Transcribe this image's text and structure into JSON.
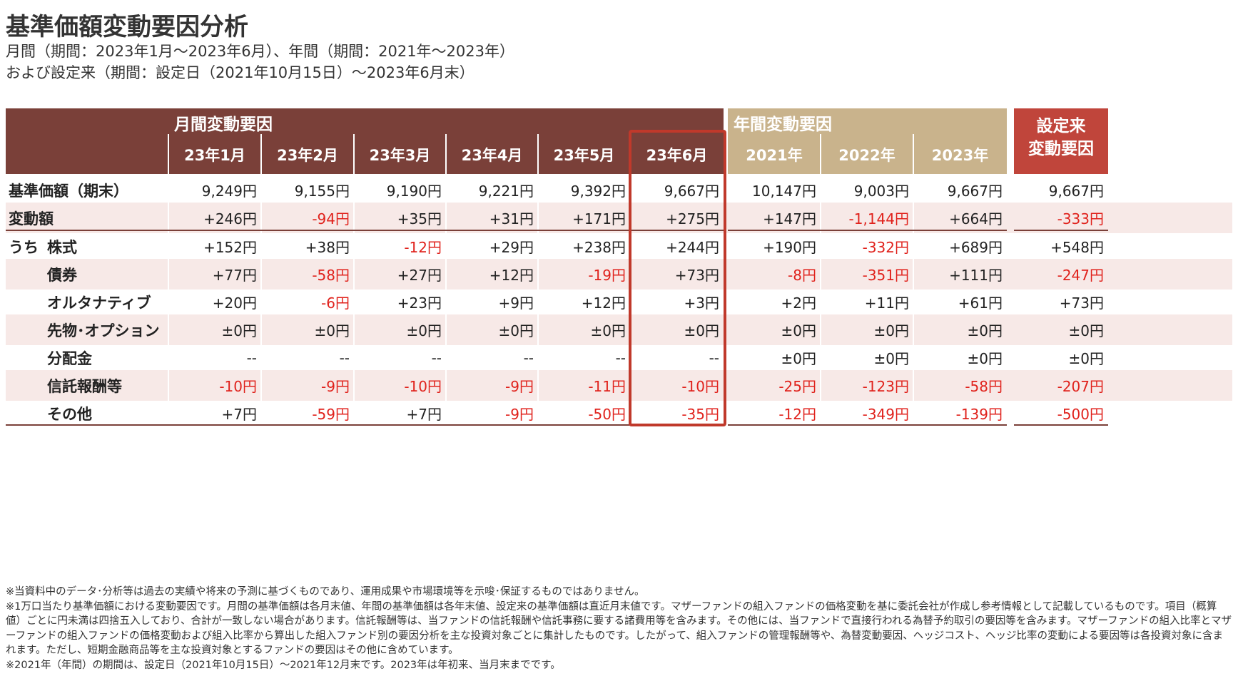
{
  "title": "基準価額変動要因分析",
  "subtitle_lines": [
    "月間（期間：2023年1月～2023年6月）、年間（期間：2021年～2023年）",
    "および設定来（期間：設定日（2021年10月15日）～2023年6月末）"
  ],
  "groups": {
    "monthly": "月間変動要因",
    "annual": "年間変動要因",
    "since_inception": [
      "設定来",
      "変動要因"
    ]
  },
  "columns": [
    "23年1月",
    "23年2月",
    "23年3月",
    "23年4月",
    "23年5月",
    "23年6月",
    "2021年",
    "2022年",
    "2023年",
    ""
  ],
  "uchi_label": "うち",
  "rows": [
    {
      "label": "基準価額（期末）",
      "values": [
        "9,249円",
        "9,155円",
        "9,190円",
        "9,221円",
        "9,392円",
        "9,667円",
        "10,147円",
        "9,003円",
        "9,667円",
        "9,667円"
      ]
    },
    {
      "label": "変動額",
      "values": [
        "+246円",
        "-94円",
        "+35円",
        "+31円",
        "+171円",
        "+275円",
        "+147円",
        "-1,144円",
        "+664円",
        "-333円"
      ]
    },
    {
      "label": "株式",
      "values": [
        "+152円",
        "+38円",
        "-12円",
        "+29円",
        "+238円",
        "+244円",
        "+190円",
        "-332円",
        "+689円",
        "+548円"
      ]
    },
    {
      "label": "債券",
      "values": [
        "+77円",
        "-58円",
        "+27円",
        "+12円",
        "-19円",
        "+73円",
        "-8円",
        "-351円",
        "+111円",
        "-247円"
      ]
    },
    {
      "label": "オルタナティブ",
      "values": [
        "+20円",
        "-6円",
        "+23円",
        "+9円",
        "+12円",
        "+3円",
        "+2円",
        "+11円",
        "+61円",
        "+73円"
      ]
    },
    {
      "label": "先物･オプション",
      "values": [
        "±0円",
        "±0円",
        "±0円",
        "±0円",
        "±0円",
        "±0円",
        "±0円",
        "±0円",
        "±0円",
        "±0円"
      ]
    },
    {
      "label": "分配金",
      "values": [
        "--",
        "--",
        "--",
        "--",
        "--",
        "--",
        "±0円",
        "±0円",
        "±0円",
        "±0円"
      ]
    },
    {
      "label": "信託報酬等",
      "values": [
        "-10円",
        "-9円",
        "-10円",
        "-9円",
        "-11円",
        "-10円",
        "-25円",
        "-123円",
        "-58円",
        "-207円"
      ]
    },
    {
      "label": "その他",
      "values": [
        "+7円",
        "-59円",
        "+7円",
        "-9円",
        "-50円",
        "-35円",
        "-12円",
        "-349円",
        "-139円",
        "-500円"
      ]
    }
  ],
  "notes": [
    "※当資料中のデータ･分析等は過去の実績や将来の予測に基づくものであり、運用成果や市場環境等を示唆･保証するものではありません。",
    "※1万口当たり基準価額における変動要因です。月間の基準価額は各月末値、年間の基準価額は各年末値、設定来の基準価額は直近月末値です。マザーファンドの組入ファンドの価格変動を基に委託会社が作成し参考情報として記載しているものです。項目（概算値）ごとに円未満は四捨五入しており、合計が一致しない場合があります。信託報酬等は、当ファンドの信託報酬や信託事務に要する諸費用等を含みます。その他には、当ファンドで直接行われる為替予約取引の要因等を含みます。マザーファンドの組入比率とマザーファンドの組入ファンドの価格変動および組入比率から算出した組入ファンド別の要因分析を主な投資対象ごとに集計したものです。したがって、組入ファンドの管理報酬等や、為替変動要因、ヘッジコスト、ヘッジ比率の変動による要因等は各投資対象に含まれます。ただし、短期金融商品等を主な投資対象とするファンドの要因はその他に含めています。",
    "※2021年（年間）の期間は、設定日（2021年10月15日）～2021年12月末です。2023年は年初来、当月末までです。"
  ],
  "colors": {
    "monthly_header": "#7a4039",
    "annual_header": "#c9b38c",
    "inception_header": "#c0453b",
    "row_shade": "#f7e9e7",
    "negative": "#e0221c",
    "highlight_border": "#c0392b"
  }
}
